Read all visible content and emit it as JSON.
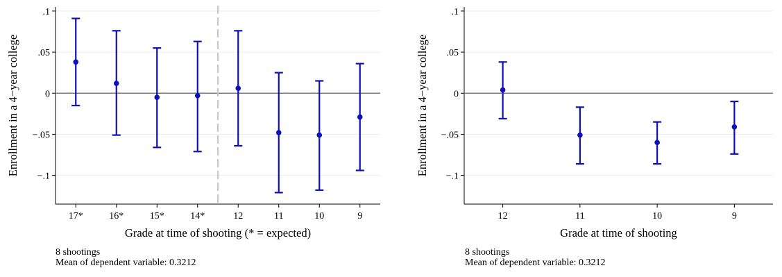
{
  "chart_data": [
    {
      "type": "scatter",
      "subtype": "coefficient plot with 95% confidence intervals",
      "title": "",
      "xlabel": "Grade at time of shooting (* = expected)",
      "ylabel": "Enrollment in a 4−year college",
      "categories": [
        "17*",
        "16*",
        "15*",
        "14*",
        "12",
        "11",
        "10",
        "9"
      ],
      "values": [
        0.038,
        0.012,
        -0.005,
        -0.003,
        0.006,
        -0.048,
        -0.051,
        -0.029
      ],
      "ci_low": [
        -0.015,
        -0.051,
        -0.066,
        -0.071,
        -0.064,
        -0.121,
        -0.118,
        -0.094
      ],
      "ci_high": [
        0.091,
        0.076,
        0.055,
        0.063,
        0.076,
        0.025,
        0.015,
        0.036
      ],
      "yticks": [
        ".1",
        ".05",
        "0",
        "−.05",
        "−.1"
      ],
      "ylim": [
        -0.135,
        0.105
      ],
      "reference_line": 0,
      "vertical_divider": "dashed line between 14* and 12",
      "grid": true,
      "marker_color": "#1010b8",
      "notes": [
        "8 shootings",
        "Mean of dependent variable: 0.3212"
      ]
    },
    {
      "type": "scatter",
      "subtype": "coefficient plot with 95% confidence intervals",
      "title": "",
      "xlabel": "Grade at time of shooting",
      "ylabel": "Enrollment in a 4−year college",
      "categories": [
        "12",
        "11",
        "10",
        "9"
      ],
      "values": [
        0.004,
        -0.051,
        -0.06,
        -0.041
      ],
      "ci_low": [
        -0.031,
        -0.086,
        -0.086,
        -0.074
      ],
      "ci_high": [
        0.038,
        -0.017,
        -0.035,
        -0.01
      ],
      "yticks": [
        ".1",
        ".05",
        "0",
        "−.05",
        "−.1"
      ],
      "ylim": [
        -0.135,
        0.105
      ],
      "reference_line": 0,
      "grid": true,
      "marker_color": "#1010b8",
      "notes": [
        "8 shootings",
        "Mean of dependent variable: 0.3212"
      ]
    }
  ]
}
